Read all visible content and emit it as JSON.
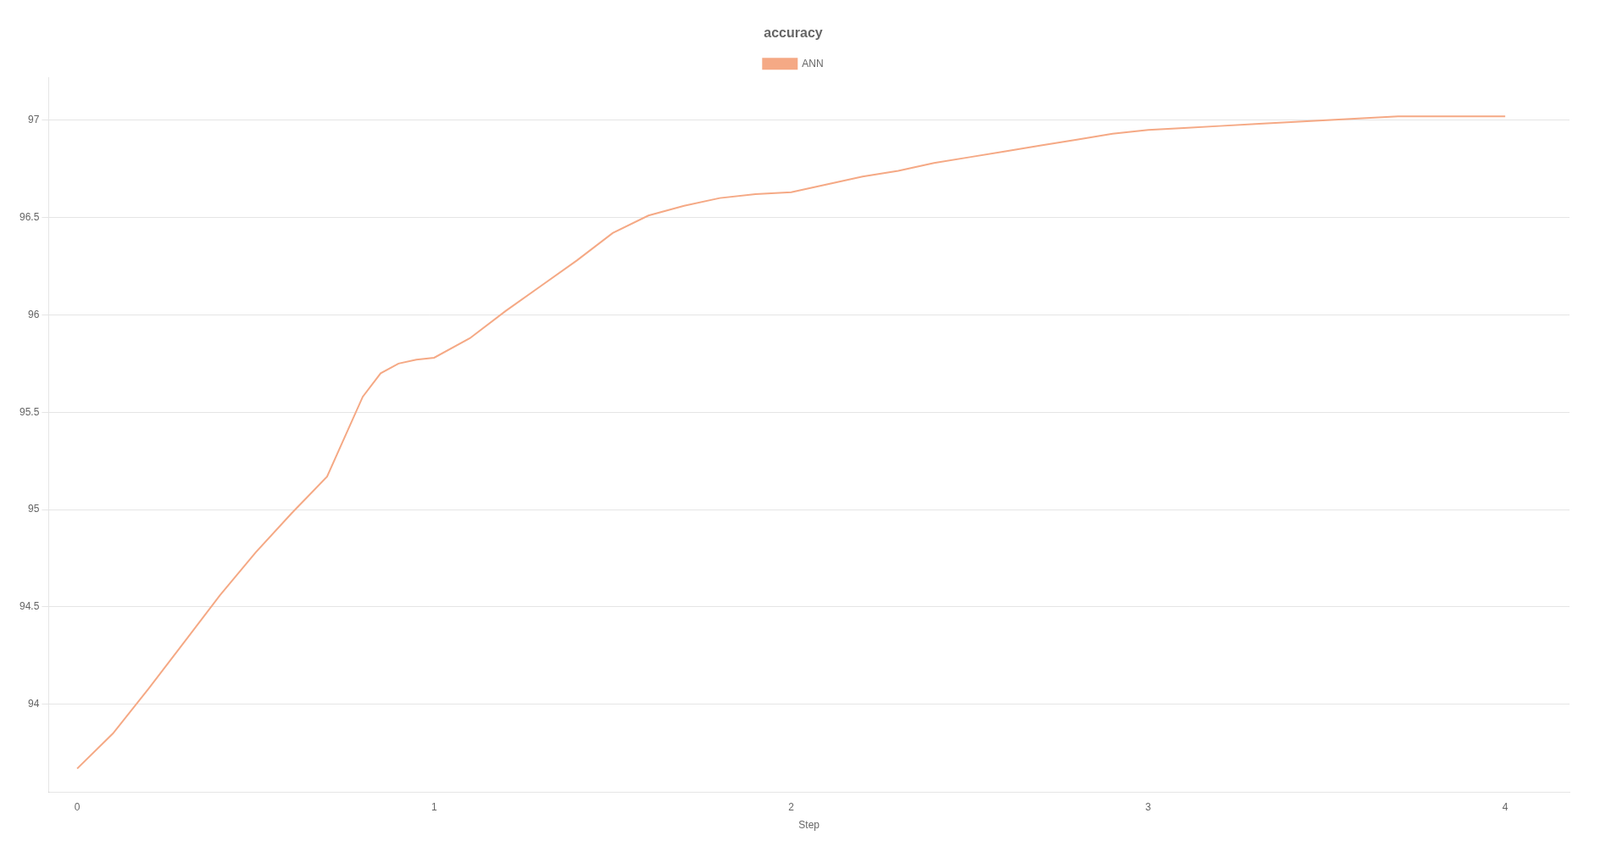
{
  "chart_data": {
    "type": "line",
    "title": "accuracy",
    "xlabel": "Step",
    "x": [
      0.0,
      0.1,
      0.2,
      0.3,
      0.4,
      0.5,
      0.6,
      0.7,
      0.8,
      0.85,
      0.9,
      0.95,
      1.0,
      1.1,
      1.2,
      1.3,
      1.4,
      1.5,
      1.6,
      1.7,
      1.8,
      1.9,
      2.0,
      2.1,
      2.2,
      2.3,
      2.4,
      2.5,
      2.6,
      2.7,
      2.8,
      2.9,
      3.0,
      3.1,
      3.2,
      3.3,
      3.4,
      3.5,
      3.6,
      3.7,
      3.8,
      3.9,
      4.0
    ],
    "series": [
      {
        "name": "ANN",
        "color": "#f5a985",
        "values": [
          93.67,
          93.85,
          94.08,
          94.32,
          94.56,
          94.78,
          94.98,
          95.17,
          95.58,
          95.7,
          95.75,
          95.77,
          95.78,
          95.88,
          96.02,
          96.15,
          96.28,
          96.42,
          96.51,
          96.56,
          96.6,
          96.62,
          96.63,
          96.67,
          96.71,
          96.74,
          96.78,
          96.81,
          96.84,
          96.87,
          96.9,
          96.93,
          96.95,
          96.96,
          96.97,
          96.98,
          96.99,
          97.0,
          97.01,
          97.02,
          97.02,
          97.02,
          97.02
        ]
      }
    ],
    "xlim": [
      -0.08,
      4.18
    ],
    "xticks": [
      0,
      1,
      2,
      3,
      4
    ],
    "ylim": [
      93.55,
      97.22
    ],
    "yticks": [
      94.0,
      94.5,
      95.0,
      95.5,
      96.0,
      96.5,
      97.0
    ],
    "grid": true,
    "legend": "top"
  }
}
